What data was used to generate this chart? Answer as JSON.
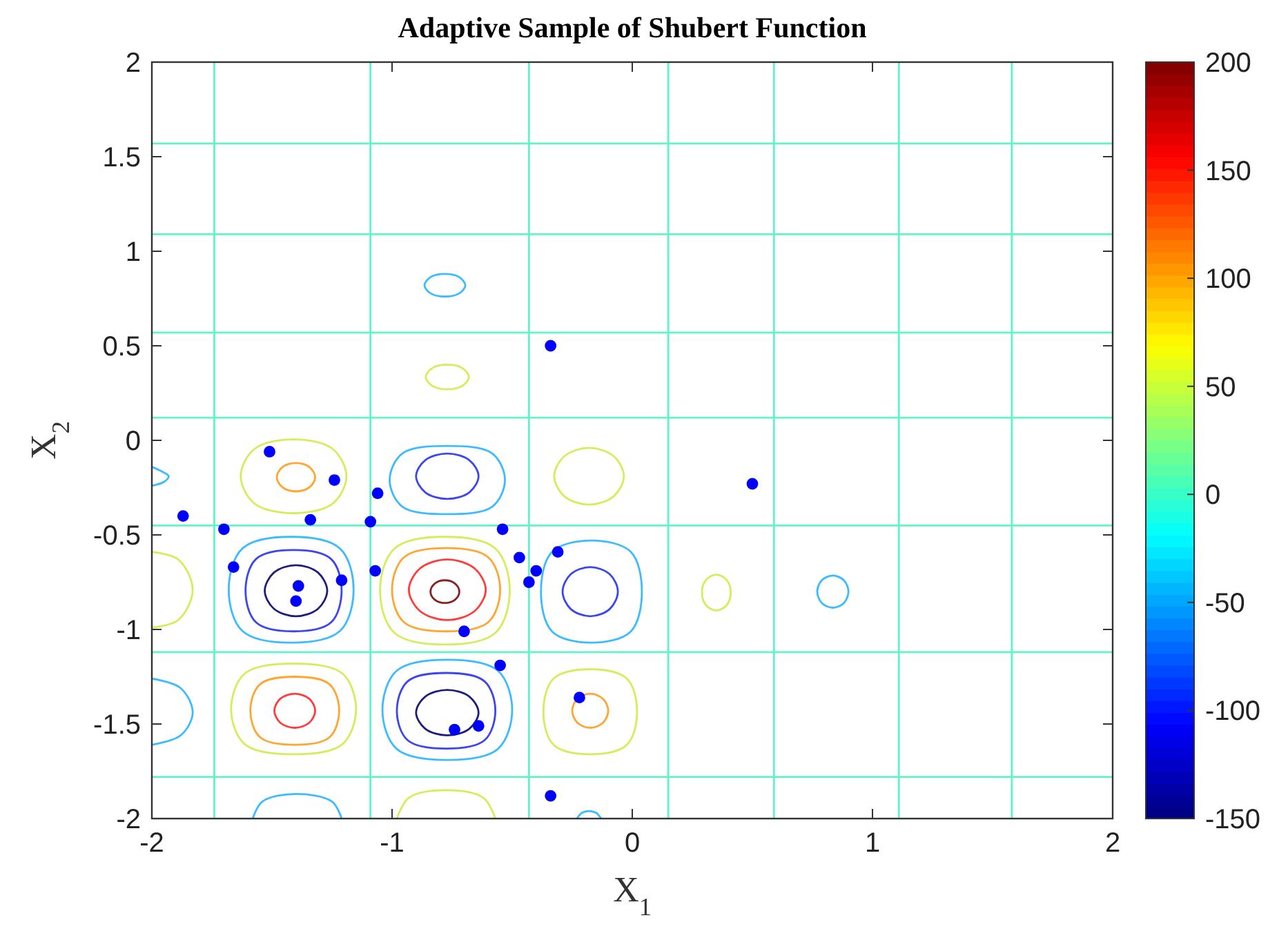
{
  "chart_data": {
    "type": "scatter",
    "title": "Adaptive Sample of Shubert Function",
    "xlabel": "X$_{1}$",
    "ylabel": "X$_{2}$",
    "xlim": [
      -2,
      2
    ],
    "ylim": [
      -2,
      2
    ],
    "xticks": [
      -2,
      -1,
      0,
      1,
      2
    ],
    "yticks": [
      -2,
      -1.5,
      -1,
      -0.5,
      0,
      0.5,
      1,
      1.5,
      2
    ],
    "clim": [
      -150,
      200
    ],
    "cticks": [
      -150,
      -100,
      -50,
      0,
      50,
      100,
      150,
      200
    ],
    "series": [
      {
        "type": "line",
        "color": "#5ff5c8",
        "x": [
          -1.74,
          -1.74
        ],
        "values": [
          -2,
          2
        ]
      },
      {
        "type": "line",
        "color": "#5ff5c8",
        "x": [
          -1.09,
          -1.09
        ],
        "values": [
          -2,
          2
        ]
      },
      {
        "type": "line",
        "color": "#5ff5c8",
        "x": [
          -0.43,
          -0.43
        ],
        "values": [
          -2,
          2
        ]
      },
      {
        "type": "line",
        "color": "#5ff5c8",
        "x": [
          0.15,
          0.15
        ],
        "values": [
          -2,
          2
        ]
      },
      {
        "type": "line",
        "color": "#5ff5c8",
        "x": [
          0.59,
          0.59
        ],
        "values": [
          -2,
          2
        ]
      },
      {
        "type": "line",
        "color": "#5ff5c8",
        "x": [
          1.11,
          1.11
        ],
        "values": [
          -2,
          2
        ]
      },
      {
        "type": "line",
        "color": "#5ff5c8",
        "x": [
          1.58,
          1.58
        ],
        "values": [
          -2,
          2
        ]
      },
      {
        "type": "line",
        "color": "#5ff5c8",
        "x": [
          -2,
          2
        ],
        "values": [
          1.57,
          1.57
        ]
      },
      {
        "type": "line",
        "color": "#5ff5c8",
        "x": [
          -2,
          2
        ],
        "values": [
          1.09,
          1.09
        ]
      },
      {
        "type": "line",
        "color": "#5ff5c8",
        "x": [
          -2,
          2
        ],
        "values": [
          0.57,
          0.57
        ]
      },
      {
        "type": "line",
        "color": "#5ff5c8",
        "x": [
          -2,
          2
        ],
        "values": [
          0.12,
          0.12
        ]
      },
      {
        "type": "line",
        "color": "#5ff5c8",
        "x": [
          -2,
          2
        ],
        "values": [
          -0.45,
          -0.45
        ]
      },
      {
        "type": "line",
        "color": "#5ff5c8",
        "x": [
          -2,
          2
        ],
        "values": [
          -1.12,
          -1.12
        ]
      },
      {
        "type": "line",
        "color": "#5ff5c8",
        "x": [
          -2,
          2
        ],
        "values": [
          -1.78,
          -1.78
        ]
      },
      {
        "type": "line",
        "color": "#d2ee5a",
        "x": [
          -2,
          -1.89,
          -1.83,
          -1.89,
          -2
        ],
        "values": [
          -0.59,
          -0.63,
          -0.79,
          -0.95,
          -0.99
        ]
      },
      {
        "type": "line",
        "color": "#3cbcff",
        "x": [
          -2,
          -1.88,
          -1.83,
          -1.88,
          -2
        ],
        "values": [
          -1.26,
          -1.31,
          -1.44,
          -1.56,
          -1.61
        ]
      },
      {
        "type": "line",
        "color": "#3cbcff",
        "x": [
          -2,
          -1.95,
          -1.93,
          -1.95,
          -2
        ],
        "values": [
          -0.14,
          -0.17,
          -0.19,
          -0.22,
          -0.24
        ]
      },
      {
        "type": "line",
        "color": "#3cbcff",
        "x": [
          -1.58,
          -1.54,
          -1.4,
          -1.25,
          -1.21
        ],
        "values": [
          -2,
          -1.91,
          -1.87,
          -1.91,
          -2
        ]
      },
      {
        "type": "line",
        "color": "#d2ee5a",
        "x": [
          -0.98,
          -0.93,
          -0.78,
          -0.62,
          -0.57
        ],
        "values": [
          -2,
          -1.89,
          -1.85,
          -1.89,
          -2
        ]
      },
      {
        "type": "line",
        "color": "#3cbcff",
        "x": [
          -0.23,
          -0.21,
          -0.18,
          -0.15,
          -0.13
        ],
        "values": [
          -2,
          -1.97,
          -1.96,
          -1.97,
          -2
        ]
      },
      {
        "color": "#0000ff",
        "marker": "circle",
        "x": [
          -1.51,
          -1.24,
          -1.06,
          -1.87,
          -1.7,
          -1.34,
          -1.09,
          -0.54,
          -1.66,
          -1.07,
          -1.21,
          -1.39,
          -1.4,
          -0.47,
          -0.31,
          -0.4,
          -0.43,
          -0.7,
          -0.55,
          -0.22,
          -0.74,
          -0.64,
          -0.34,
          0.5,
          -0.34
        ],
        "values": [
          -0.06,
          -0.21,
          -0.28,
          -0.4,
          -0.47,
          -0.42,
          -0.43,
          -0.47,
          -0.67,
          -0.69,
          -0.74,
          -0.77,
          -0.85,
          -0.62,
          -0.59,
          -0.69,
          -0.75,
          -1.01,
          -1.19,
          -1.36,
          -1.53,
          -1.51,
          0.5,
          -0.23,
          -1.88
        ]
      }
    ]
  }
}
